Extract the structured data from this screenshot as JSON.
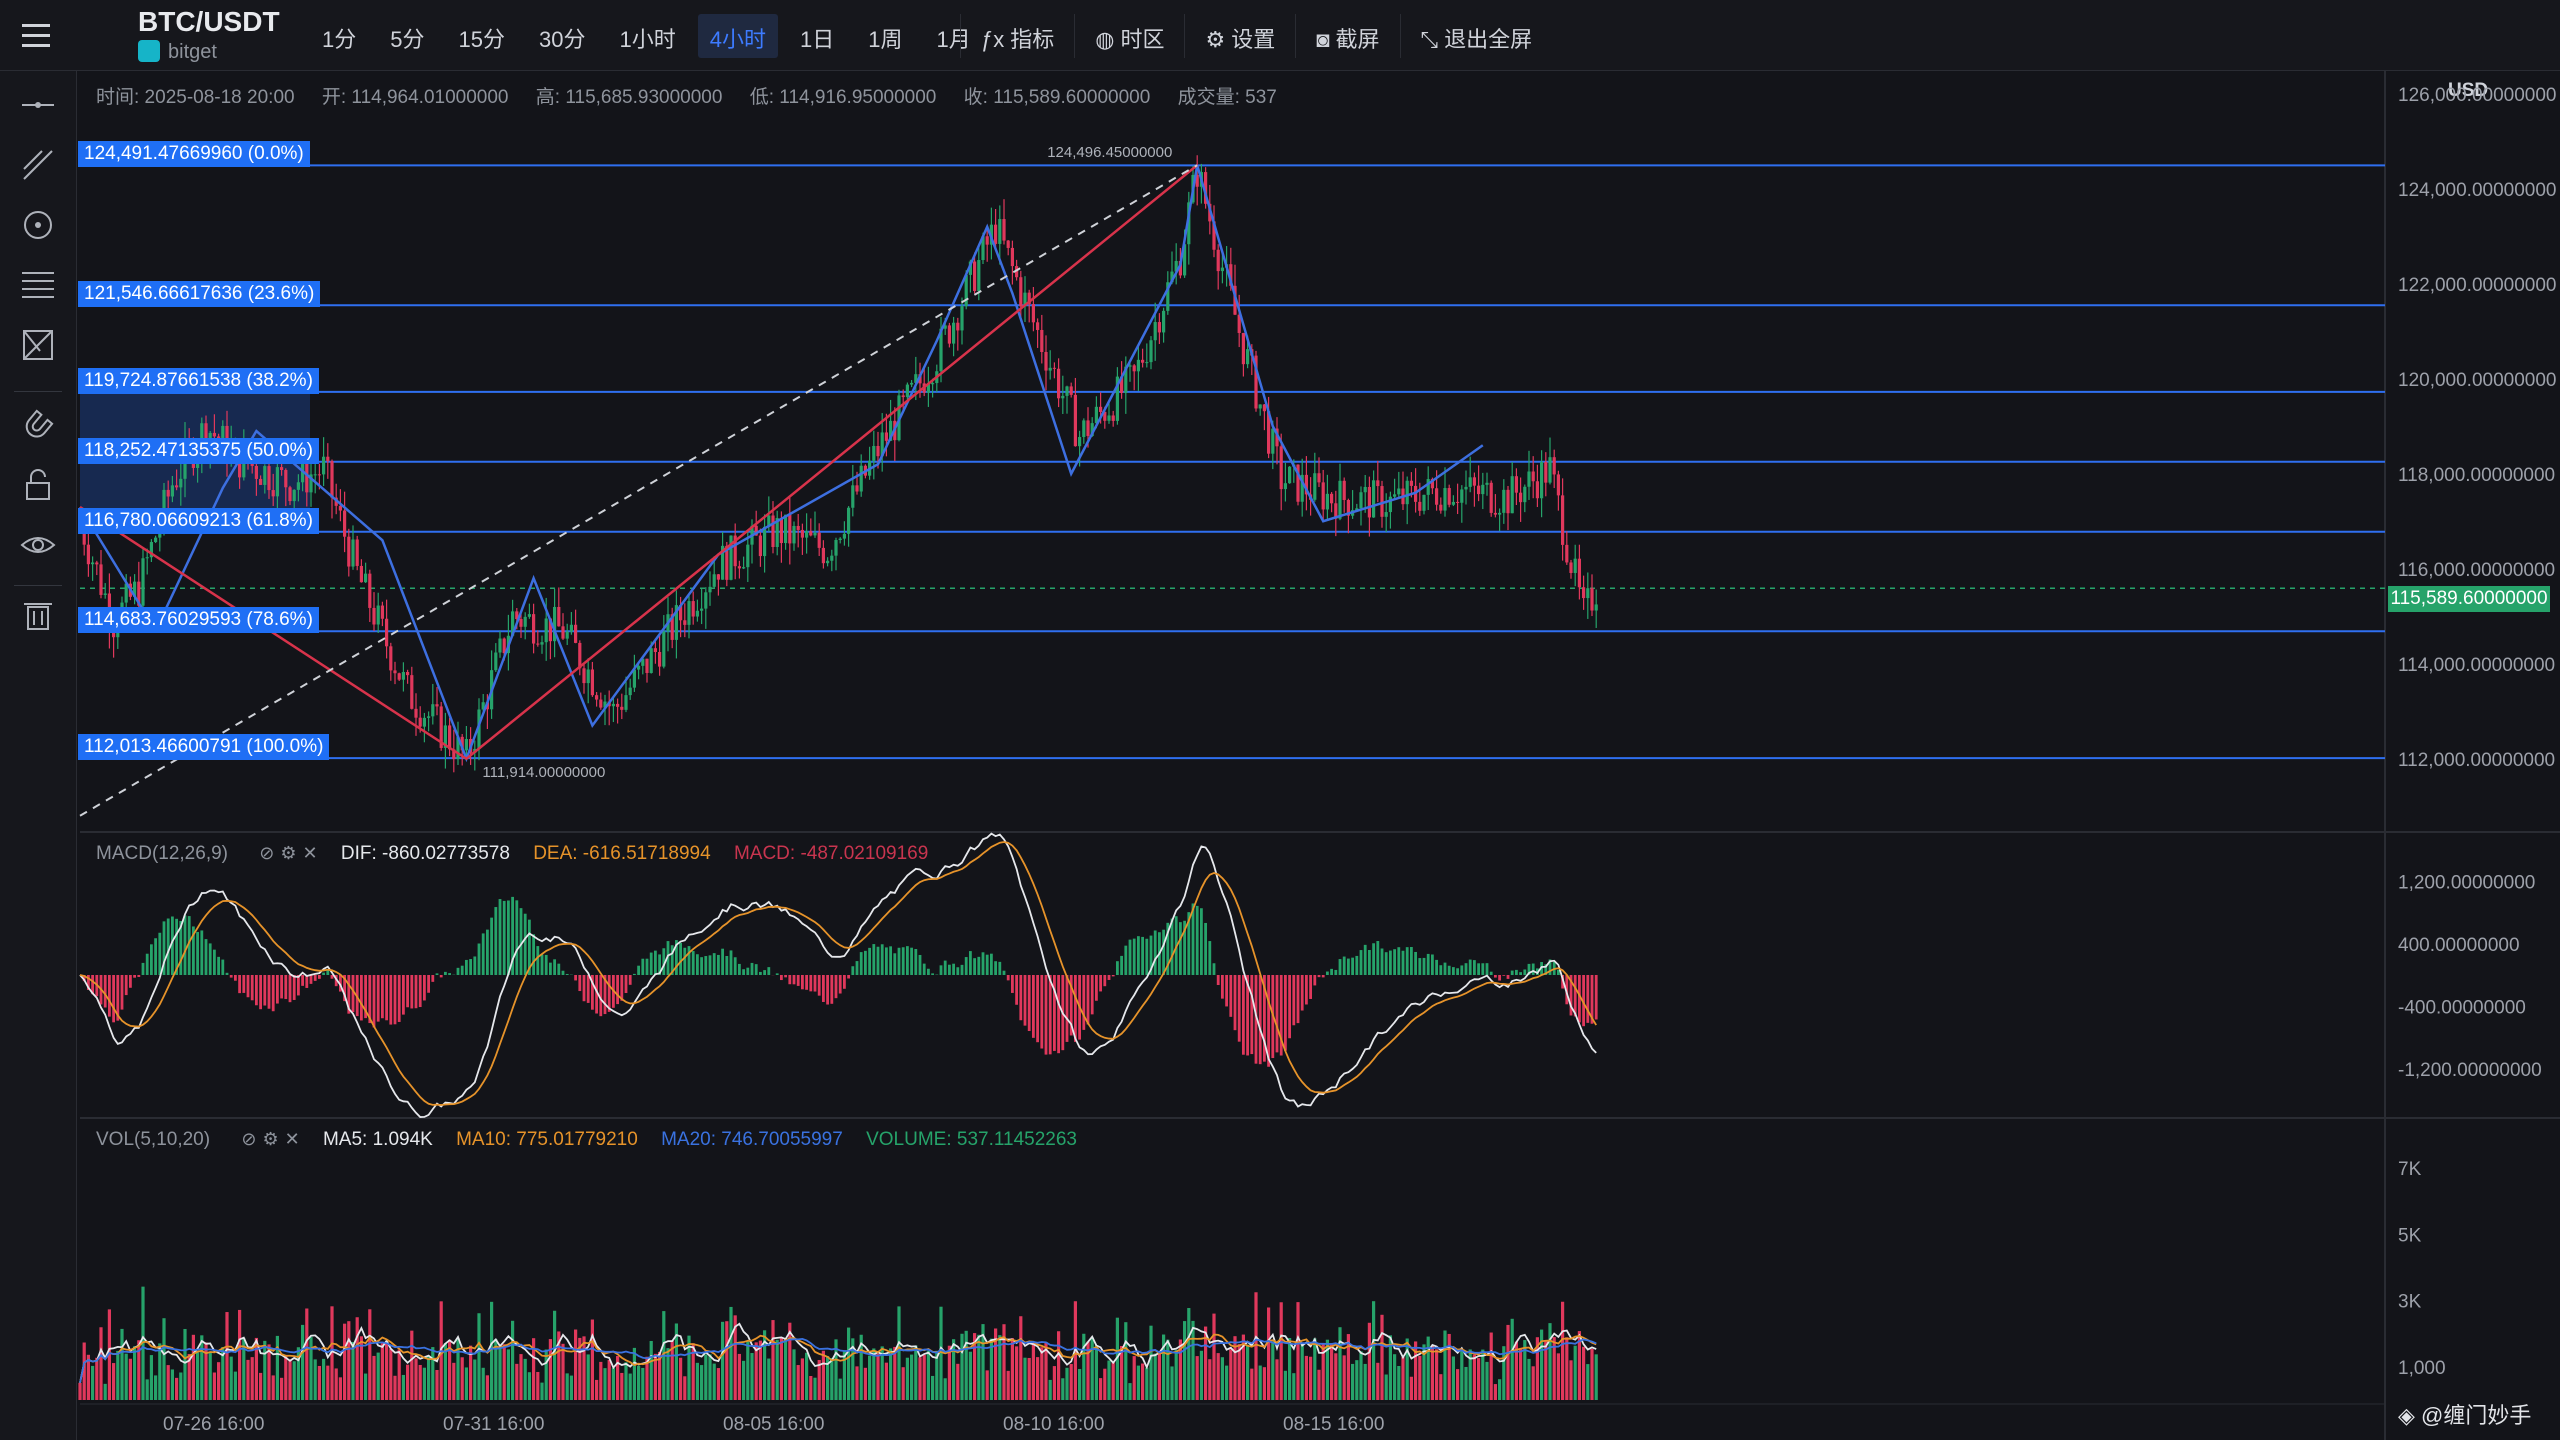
{
  "header": {
    "symbol": "BTC/USDT",
    "exchange": "bitget",
    "intervals": [
      "1分",
      "5分",
      "15分",
      "30分",
      "1小时",
      "4小时",
      "1日",
      "1周",
      "1月"
    ],
    "active_interval": "4小时",
    "tools": [
      {
        "label": "指标",
        "icon": "indicator-icon"
      },
      {
        "label": "时区",
        "icon": "timezone-globe-icon"
      },
      {
        "label": "设置",
        "icon": "gear-icon"
      },
      {
        "label": "截屏",
        "icon": "camera-icon"
      },
      {
        "label": "退出全屏",
        "icon": "exit-fullscreen-icon"
      }
    ]
  },
  "sidebar": {
    "icons": [
      "horizontal-line-icon",
      "trend-line-icon",
      "circle-icon",
      "fib-lines-icon",
      "pattern-icon",
      "magnet-icon",
      "unlock-icon",
      "eye-icon",
      "trash-icon"
    ]
  },
  "ohlc": {
    "time": "时间: 2025-08-18 20:00",
    "open": "开: 114,964.01000000",
    "high": "高: 115,685.93000000",
    "low": "低: 114,916.95000000",
    "close": "收: 115,589.60000000",
    "volume": "成交量: 537"
  },
  "currency": "USD",
  "price_axis": [
    "126,000.00000000",
    "124,000.00000000",
    "122,000.00000000",
    "120,000.00000000",
    "118,000.00000000",
    "116,000.00000000",
    "114,000.00000000",
    "112,000.00000000"
  ],
  "last_price": "115,589.60000000",
  "fib_levels": [
    {
      "label": "124,491.47669960 (0.0%)",
      "price": 124491.48
    },
    {
      "label": "121,546.66617636 (23.6%)",
      "price": 121546.67
    },
    {
      "label": "119,724.87661538 (38.2%)",
      "price": 119724.88
    },
    {
      "label": "118,252.47135375 (50.0%)",
      "price": 118252.47
    },
    {
      "label": "116,780.06609213 (61.8%)",
      "price": 116780.07
    },
    {
      "label": "114,683.76029593 (78.6%)",
      "price": 114683.76
    },
    {
      "label": "112,013.46600791 (100.0%)",
      "price": 112013.47
    }
  ],
  "annotations": {
    "high_label": "124,496.45000000",
    "low_label": "111,914.00000000"
  },
  "macd": {
    "name": "MACD(12,26,9)",
    "dif": "DIF: -860.02773578",
    "dea": "DEA: -616.51718994",
    "macd": "MACD: -487.02109169",
    "axis": [
      "1,200.00000000",
      "400.00000000",
      "-400.00000000",
      "-1,200.00000000"
    ]
  },
  "vol": {
    "name": "VOL(5,10,20)",
    "ma5": "MA5: 1.094K",
    "ma10": "MA10: 775.01779210",
    "ma20": "MA20: 746.70055997",
    "volume": "VOLUME: 537.11452263",
    "axis": [
      "7K",
      "5K",
      "3K",
      "1,000"
    ]
  },
  "time_axis": [
    "07-26 16:00",
    "07-31 16:00",
    "08-05 16:00",
    "08-10 16:00",
    "08-15 16:00"
  ],
  "watermark": "@缠门妙手",
  "colors": {
    "up": "#26a36a",
    "down": "#e0385c",
    "fib": "#2f6ff0",
    "bg": "#131419",
    "accent": "#3d7bff"
  },
  "chart_data": {
    "type": "candlestick",
    "y_range": [
      110500,
      126500
    ],
    "anchors": [
      [
        0,
        117000
      ],
      [
        8,
        114900
      ],
      [
        14,
        115600
      ],
      [
        22,
        117800
      ],
      [
        30,
        119000
      ],
      [
        38,
        118300
      ],
      [
        50,
        117800
      ],
      [
        58,
        118100
      ],
      [
        66,
        115900
      ],
      [
        78,
        113400
      ],
      [
        92,
        112000
      ],
      [
        103,
        115000
      ],
      [
        115,
        114700
      ],
      [
        127,
        113000
      ],
      [
        139,
        114500
      ],
      [
        152,
        116100
      ],
      [
        166,
        116800
      ],
      [
        178,
        116400
      ],
      [
        190,
        118500
      ],
      [
        204,
        120500
      ],
      [
        218,
        123200
      ],
      [
        226,
        121400
      ],
      [
        238,
        118800
      ],
      [
        251,
        120000
      ],
      [
        262,
        122600
      ],
      [
        266,
        124400
      ],
      [
        276,
        121000
      ],
      [
        286,
        117900
      ],
      [
        298,
        117500
      ],
      [
        312,
        117400
      ],
      [
        326,
        117700
      ],
      [
        340,
        117500
      ],
      [
        350,
        118100
      ],
      [
        358,
        115000
      ],
      [
        361,
        115600
      ]
    ]
  }
}
